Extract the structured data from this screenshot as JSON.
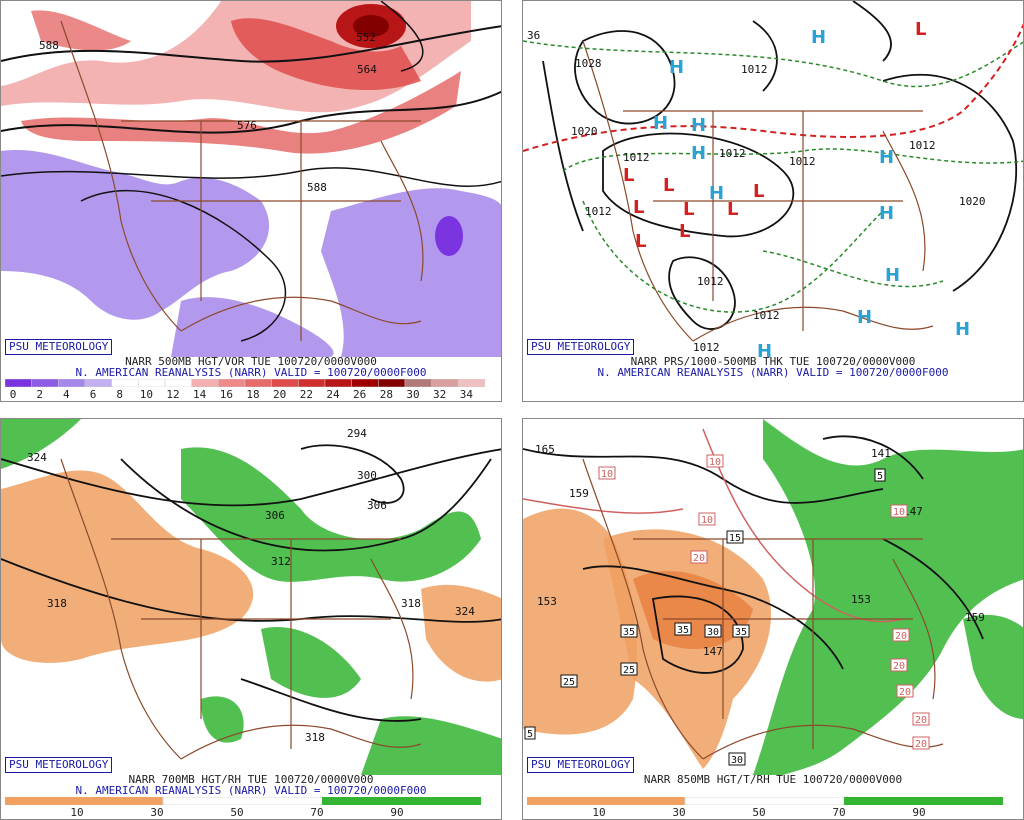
{
  "panels": [
    {
      "badge": "PSU METEOROLOGY",
      "line1": "NARR 500MB HGT/VOR TUE 100720/0000V000",
      "line2": "N. AMERICAN REANALYSIS (NARR) VALID = 100720/0000F000",
      "contour_labels": [
        "588",
        "552",
        "564",
        "576",
        "588"
      ],
      "scale_labels": [
        "0",
        "2",
        "4",
        "6",
        "8",
        "10",
        "12",
        "14",
        "16",
        "18",
        "20",
        "22",
        "24",
        "26",
        "28",
        "30",
        "32",
        "34"
      ]
    },
    {
      "badge": "PSU METEOROLOGY",
      "line1": "NARR PRS/1000-500MB THK TUE 100720/0000V000",
      "line2": "N. AMERICAN REANALYSIS (NARR) VALID = 100720/0000F000",
      "contour_labels": [
        "1012",
        "1028",
        "1012",
        "1020",
        "1012",
        "1012",
        "1012",
        "1020",
        "1012",
        "1012",
        "36",
        "1012",
        "1012"
      ]
    },
    {
      "badge": "PSU METEOROLOGY",
      "line1": "NARR 700MB HGT/RH TUE 100720/0000V000",
      "line2": "N. AMERICAN REANALYSIS (NARR) VALID = 100720/0000F000",
      "contour_labels": [
        "324",
        "294",
        "300",
        "306",
        "306",
        "312",
        "318",
        "318",
        "324",
        "318"
      ],
      "scale_labels": [
        "10",
        "30",
        "50",
        "70",
        "90"
      ]
    },
    {
      "badge": "PSU METEOROLOGY",
      "line1": "NARR 850MB HGT/T/RH TUE 100720/0000V000",
      "contour_labels": [
        "165",
        "159",
        "153",
        "147",
        "141",
        "147",
        "153",
        "159"
      ],
      "box_labels": [
        "10",
        "10",
        "10",
        "10",
        "15",
        "20",
        "35",
        "35",
        "30",
        "35",
        "25",
        "25",
        "30",
        "5",
        "20",
        "20",
        "20",
        "20",
        "20",
        "5"
      ],
      "scale_labels": [
        "10",
        "30",
        "50",
        "70",
        "90"
      ]
    }
  ],
  "colors": {
    "vort_scale": [
      "#7a35e0",
      "#8e5be6",
      "#a687ea",
      "#c2b0f0",
      "#ffffff",
      "#ffffff",
      "#ffffff",
      "#f4b0b0",
      "#ee8a8a",
      "#e66b6b",
      "#de4c4c",
      "#cf2f2f",
      "#b81616",
      "#9e0000",
      "#830000",
      "#b07a7a",
      "#d9a0a0",
      "#f0c0c0"
    ],
    "rh_dry": "#f0a060",
    "rh_wet": "#33b533",
    "caption_blue": "#1a1aa6"
  }
}
